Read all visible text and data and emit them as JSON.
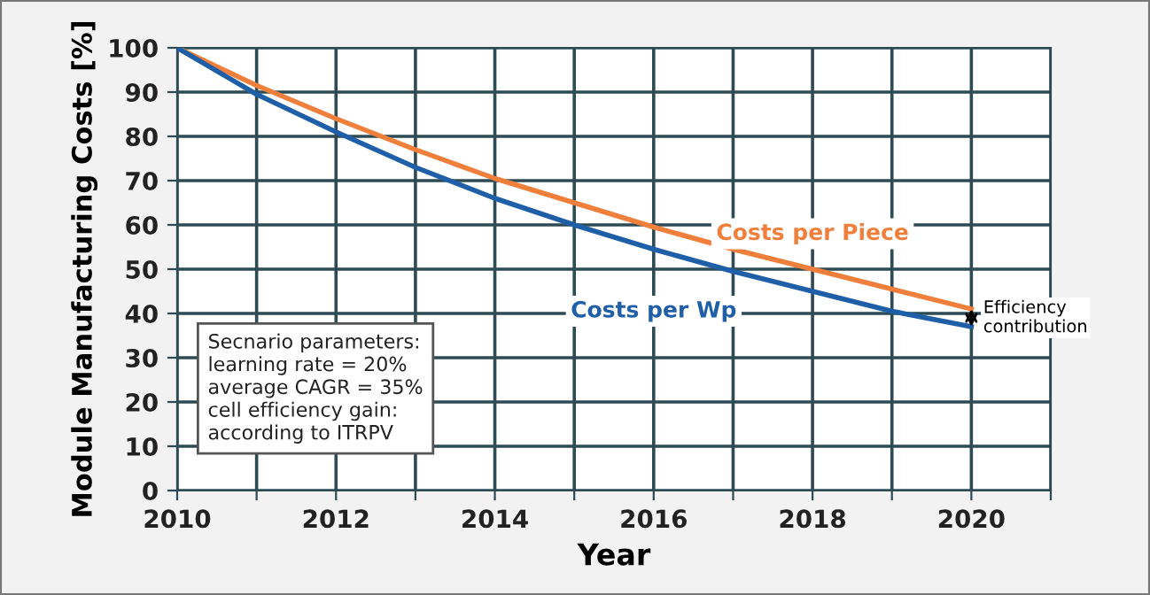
{
  "chart_data": {
    "type": "line",
    "xlabel": "Year",
    "ylabel": "Module Manufacturing Costs [%]",
    "x": [
      2010,
      2011,
      2012,
      2013,
      2014,
      2015,
      2016,
      2017,
      2018,
      2019,
      2020
    ],
    "series": [
      {
        "name": "Costs per Piece",
        "color": "#f07f3c",
        "values": [
          100,
          91.5,
          84,
          77,
          70.5,
          65,
          59.5,
          54.5,
          50,
          45.5,
          41
        ]
      },
      {
        "name": "Costs per Wp",
        "color": "#1f5fa8",
        "values": [
          100,
          89.5,
          81,
          73,
          66,
          60,
          54.5,
          49.5,
          45,
          40.5,
          37
        ]
      }
    ],
    "xlim": [
      2010,
      2021
    ],
    "xticks": [
      2010,
      {
        "value": 2011,
        "label": null
      },
      2012,
      {
        "value": 2013,
        "label": null
      },
      2014,
      {
        "value": 2015,
        "label": null
      },
      2016,
      {
        "value": 2017,
        "label": null
      },
      2018,
      {
        "value": 2019,
        "label": null
      },
      2020,
      {
        "value": 2021,
        "label": null
      }
    ],
    "ylim": [
      0,
      100
    ],
    "yticks": [
      0,
      10,
      20,
      30,
      40,
      50,
      60,
      70,
      80,
      90,
      100
    ],
    "grid": true,
    "legend": false,
    "marker": "none",
    "line_style": "solid",
    "annotations": [
      {
        "text": "Efficiency\ncontribution",
        "x": 2020,
        "y": 39
      },
      "Secnario parameters:\nlearning rate = 20%\naverage CAGR = 35%\ncell efficiency gain:\naccording to ITRPV"
    ]
  }
}
